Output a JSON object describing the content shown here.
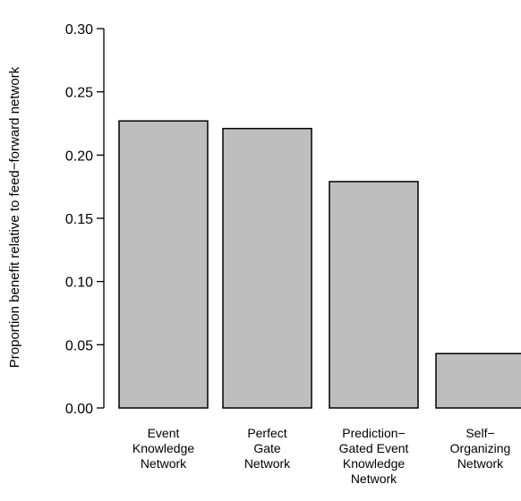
{
  "chart_data": {
    "type": "bar",
    "title": "",
    "xlabel": "",
    "ylabel": "Proportion benefit relative to feed−forward network",
    "ylim": [
      0,
      0.3
    ],
    "yticks": [
      "0.00",
      "0.05",
      "0.10",
      "0.15",
      "0.20",
      "0.25",
      "0.30"
    ],
    "ytick_values": [
      0,
      0.05,
      0.1,
      0.15,
      0.2,
      0.25,
      0.3
    ],
    "categories": [
      [
        "Event",
        "Knowledge",
        "Network"
      ],
      [
        "Perfect",
        "Gate",
        "Network"
      ],
      [
        "Prediction−",
        "Gated Event",
        "Knowledge",
        "Network"
      ],
      [
        "Self−",
        "Organizing",
        "Network"
      ]
    ],
    "values": [
      0.227,
      0.221,
      0.179,
      0.043
    ],
    "bar_color": "#bebebe",
    "grid": false,
    "legend": "none"
  }
}
